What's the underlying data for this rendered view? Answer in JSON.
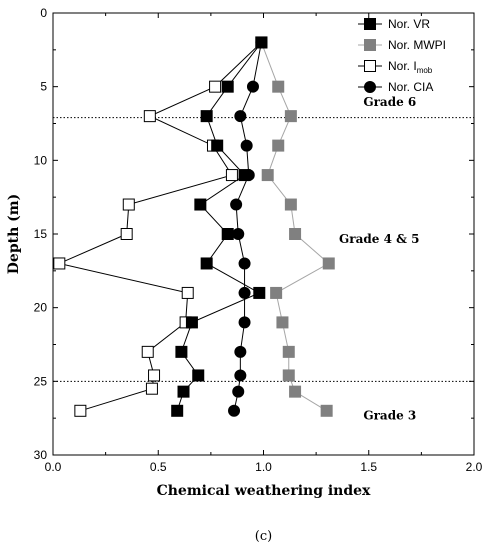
{
  "chart_data": {
    "type": "scatter",
    "xlabel": "Chemical weathering index",
    "ylabel": "Depth (m)",
    "xlim": [
      0.0,
      2.0
    ],
    "ylim": [
      0,
      30
    ],
    "y_inverted": true,
    "xticks": [
      "0.0",
      "0.5",
      "1.0",
      "1.5",
      "2.0"
    ],
    "yticks": [
      "0",
      "5",
      "10",
      "15",
      "20",
      "25",
      "30"
    ],
    "grid": false,
    "legend_placement": "top-right",
    "panel_label": "(c)",
    "reference_lines": [
      {
        "depth": 7.1,
        "style": "dotted"
      },
      {
        "depth": 25.0,
        "style": "dotted"
      }
    ],
    "annotations": [
      {
        "text": "Grade 6",
        "x": 1.6,
        "y": 6.3
      },
      {
        "text": "Grade 4 & 5",
        "x": 1.55,
        "y": 15.6
      },
      {
        "text": "Grade 3",
        "x": 1.6,
        "y": 27.6
      }
    ],
    "series": [
      {
        "name": "Nor. VR",
        "name_sub": "",
        "marker": "square-filled",
        "color": "#000000",
        "line_color": "#000000",
        "points": [
          [
            0.99,
            2
          ],
          [
            0.83,
            5
          ],
          [
            0.73,
            7
          ],
          [
            0.78,
            9
          ],
          [
            0.91,
            11
          ],
          [
            0.7,
            13
          ],
          [
            0.83,
            15
          ],
          [
            0.73,
            17
          ],
          [
            0.98,
            19
          ],
          [
            0.66,
            21
          ],
          [
            0.61,
            23
          ],
          [
            0.69,
            24.6
          ],
          [
            0.62,
            25.7
          ],
          [
            0.59,
            27
          ]
        ]
      },
      {
        "name": "Nor. MWPI",
        "name_sub": "",
        "marker": "square-filled",
        "color": "#808080",
        "line_color": "#a6a6a6",
        "points": [
          [
            0.99,
            2
          ],
          [
            1.07,
            5
          ],
          [
            1.13,
            7
          ],
          [
            1.07,
            9
          ],
          [
            1.02,
            11
          ],
          [
            1.13,
            13
          ],
          [
            1.15,
            15
          ],
          [
            1.31,
            17
          ],
          [
            1.06,
            19
          ],
          [
            1.09,
            21
          ],
          [
            1.12,
            23
          ],
          [
            1.12,
            24.6
          ],
          [
            1.15,
            25.7
          ],
          [
            1.3,
            27
          ]
        ]
      },
      {
        "name": "Nor. I",
        "name_sub": "mob",
        "marker": "square-open",
        "color": "#000000",
        "line_color": "#000000",
        "points": [
          [
            0.99,
            2
          ],
          [
            0.77,
            5
          ],
          [
            0.46,
            7
          ],
          [
            0.76,
            9
          ],
          [
            0.85,
            11
          ],
          [
            0.36,
            13
          ],
          [
            0.35,
            15
          ],
          [
            0.03,
            17
          ],
          [
            0.64,
            19
          ],
          [
            0.63,
            21
          ],
          [
            0.45,
            23
          ],
          [
            0.48,
            24.6
          ],
          [
            0.47,
            25.5
          ],
          [
            0.13,
            27
          ]
        ]
      },
      {
        "name": "Nor. CIA",
        "name_sub": "",
        "marker": "circle-filled",
        "color": "#000000",
        "line_color": "#000000",
        "points": [
          [
            0.99,
            2
          ],
          [
            0.95,
            5
          ],
          [
            0.89,
            7
          ],
          [
            0.92,
            9
          ],
          [
            0.93,
            11
          ],
          [
            0.87,
            13
          ],
          [
            0.88,
            15
          ],
          [
            0.91,
            17
          ],
          [
            0.91,
            19
          ],
          [
            0.91,
            21
          ],
          [
            0.89,
            23
          ],
          [
            0.89,
            24.6
          ],
          [
            0.88,
            25.7
          ],
          [
            0.86,
            27
          ]
        ]
      }
    ]
  }
}
